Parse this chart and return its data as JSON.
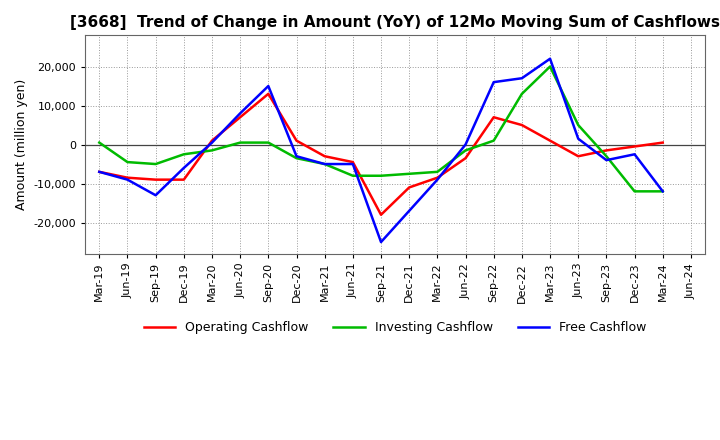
{
  "title": "[3668]  Trend of Change in Amount (YoY) of 12Mo Moving Sum of Cashflows",
  "ylabel": "Amount (million yen)",
  "labels": [
    "Mar-19",
    "Jun-19",
    "Sep-19",
    "Dec-19",
    "Mar-20",
    "Jun-20",
    "Sep-20",
    "Dec-20",
    "Mar-21",
    "Jun-21",
    "Sep-21",
    "Dec-21",
    "Mar-22",
    "Jun-22",
    "Sep-22",
    "Dec-22",
    "Mar-23",
    "Jun-23",
    "Sep-23",
    "Dec-23",
    "Mar-24",
    "Jun-24"
  ],
  "operating": [
    -7000,
    -8500,
    -9000,
    -9000,
    1000,
    7000,
    13000,
    1000,
    -3000,
    -4500,
    -18000,
    -11000,
    -8500,
    -3500,
    7000,
    5000,
    1000,
    -3000,
    -1500,
    -500,
    500,
    null
  ],
  "investing": [
    500,
    -4500,
    -5000,
    -2500,
    -1500,
    500,
    500,
    -3500,
    -5000,
    -8000,
    -8000,
    -7500,
    -7000,
    -1500,
    1000,
    13000,
    20000,
    5000,
    -3000,
    -12000,
    -12000,
    null
  ],
  "free": [
    -7000,
    -9000,
    -13000,
    -6000,
    500,
    8000,
    15000,
    -3000,
    -5000,
    -5000,
    -25000,
    -17000,
    -9000,
    0,
    16000,
    17000,
    22000,
    1500,
    -4000,
    -2500,
    -12000,
    null
  ],
  "operating_color": "#ff0000",
  "investing_color": "#00bb00",
  "free_color": "#0000ff",
  "ylim": [
    -28000,
    28000
  ],
  "yticks": [
    -20000,
    -10000,
    0,
    10000,
    20000
  ],
  "background_color": "#ffffff",
  "grid_color": "#999999"
}
